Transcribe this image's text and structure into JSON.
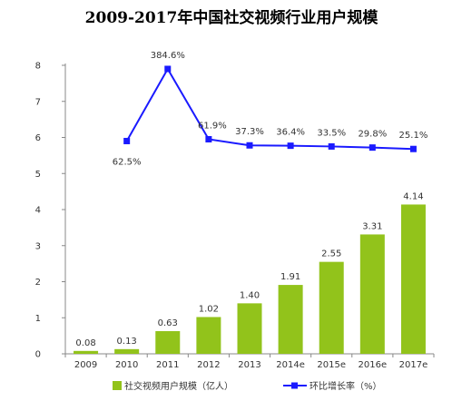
{
  "chart_data": {
    "type": "bar+line",
    "title": "2009-2017年中国社交视频行业用户规模",
    "categories": [
      "2009",
      "2010",
      "2011",
      "2012",
      "2013",
      "2014e",
      "2015e",
      "2016e",
      "2017e"
    ],
    "y_ticks": [
      "0",
      "1",
      "2",
      "3",
      "4",
      "5",
      "6",
      "7",
      "8"
    ],
    "ylim": [
      0,
      8
    ],
    "grid": false,
    "legend_position": "bottom",
    "series": [
      {
        "name": "社交视频用户规模（亿人）",
        "kind": "bar",
        "color": "#92c31b",
        "values": [
          0.08,
          0.13,
          0.63,
          1.02,
          1.4,
          1.91,
          2.55,
          3.31,
          4.14
        ],
        "labels": [
          "0.08",
          "0.13",
          "0.63",
          "1.02",
          "1.40",
          "1.91",
          "2.55",
          "3.31",
          "4.14"
        ]
      },
      {
        "name": "环比增长率（%）",
        "kind": "line",
        "color": "#1a1aff",
        "values": [
          null,
          62.5,
          384.6,
          61.9,
          37.3,
          36.4,
          33.5,
          29.8,
          25.1
        ],
        "plot_y": [
          null,
          5.9,
          7.9,
          5.95,
          5.78,
          5.77,
          5.75,
          5.72,
          5.68
        ],
        "labels": [
          "",
          "62.5%",
          "384.6%",
          "61.9%",
          "37.3%",
          "36.4%",
          "33.5%",
          "29.8%",
          "25.1%"
        ]
      }
    ]
  }
}
